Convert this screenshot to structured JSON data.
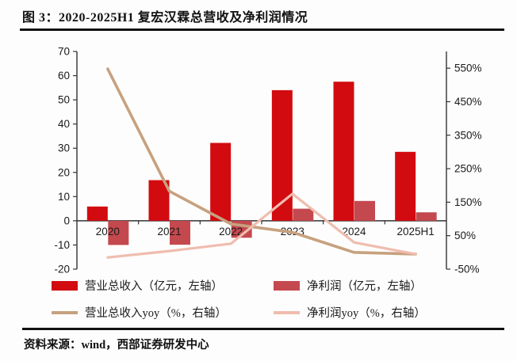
{
  "title": "图 3：2020-2025H1 复宏汉霖总营收及净利润情况",
  "source": "资料来源：wind，西部证券研发中心",
  "colors": {
    "revenue_bar": "#d20b10",
    "net_profit_bar": "#c550556",
    "revenue_yoy_line": "#c7a17e",
    "net_profit_yoy_line": "#f0bcae",
    "axis": "#333333",
    "text": "#1a1a1a",
    "rule": "#111111"
  },
  "chart_data": {
    "type": "bar",
    "subtype": "bar-line-combo",
    "title": "2020-2025H1 复宏汉霖总营收及净利润情况",
    "grid": false,
    "legend_position": "bottom",
    "categories": [
      "2020",
      "2021",
      "2022",
      "2023",
      "2024",
      "2025H1"
    ],
    "series": [
      {
        "name": "营业总收入（亿元，左轴）",
        "type": "bar",
        "axis": "left",
        "color": "#d20b10",
        "values": [
          5.9,
          16.8,
          32.2,
          54.0,
          57.5,
          28.5
        ]
      },
      {
        "name": "净利润（亿元，左轴）",
        "type": "bar",
        "axis": "left",
        "color": "#c4494f",
        "values": [
          -10.0,
          -9.9,
          -7.0,
          5.0,
          8.2,
          3.5
        ]
      },
      {
        "name": "营业总收入yoy（%，右轴）",
        "type": "line",
        "axis": "right",
        "color": "#c7a17e",
        "stroke_width": 3.6,
        "values": [
          548,
          183,
          85,
          60,
          0,
          -5
        ]
      },
      {
        "name": "净利润yoy（%，右轴）",
        "type": "line",
        "axis": "right",
        "color": "#f0bcae",
        "stroke_width": 3.2,
        "values": [
          -15,
          4,
          26,
          175,
          30,
          -5
        ]
      }
    ],
    "left_axis": {
      "unit": "亿元",
      "min": -20,
      "max": 70,
      "ticks": [
        70,
        60,
        50,
        40,
        30,
        20,
        10,
        0,
        -10,
        -20
      ]
    },
    "right_axis": {
      "unit": "%",
      "min": -50,
      "max": 600,
      "tick_suffix": "%",
      "ticks": [
        550,
        450,
        350,
        250,
        150,
        50,
        -50
      ]
    }
  }
}
